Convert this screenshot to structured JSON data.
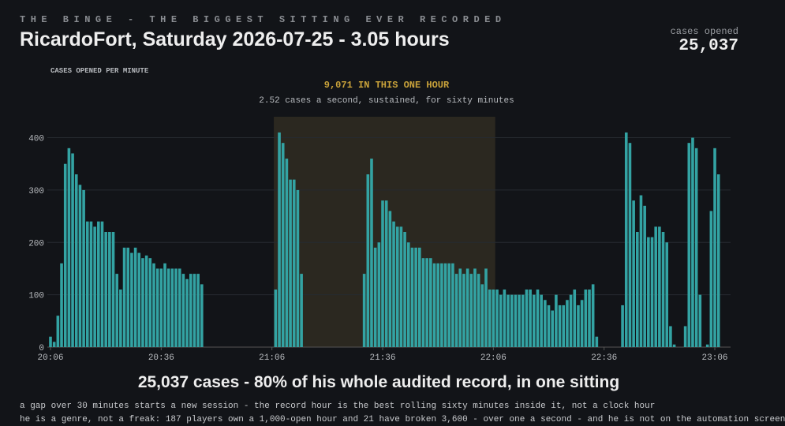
{
  "header": {
    "kicker": "THE BINGE - THE BIGGEST SITTING EVER RECORDED",
    "title": "RicardoFort, Saturday 2026-07-25 - 3.05 hours",
    "stat_label": "cases opened",
    "stat_value": "25,037"
  },
  "chart_data": {
    "type": "bar",
    "y_label": "CASES OPENED PER MINUTE",
    "annotation": "9,071 IN THIS ONE HOUR",
    "annotation_sub": "2.52 cases a second, sustained, for sixty minutes",
    "highlight_range": [
      61,
      120
    ],
    "highlight_color": "#2b2820",
    "annotation_color": "#c9a23a",
    "color": "#33a3a3",
    "grid": true,
    "ylim": [
      0,
      440
    ],
    "yticks": [
      0,
      100,
      200,
      300,
      400
    ],
    "categories": [
      "20:06",
      null,
      null,
      null,
      null,
      null,
      null,
      null,
      null,
      null,
      null,
      null,
      null,
      null,
      null,
      null,
      null,
      null,
      null,
      null,
      null,
      null,
      null,
      null,
      null,
      null,
      null,
      null,
      null,
      null,
      "20:36",
      null,
      null,
      null,
      null,
      null,
      null,
      null,
      null,
      null,
      null,
      null,
      null,
      null,
      null,
      null,
      null,
      null,
      null,
      null,
      null,
      null,
      null,
      null,
      null,
      null,
      null,
      null,
      null,
      null,
      "21:06",
      null,
      null,
      null,
      null,
      null,
      null,
      null,
      null,
      null,
      null,
      null,
      null,
      null,
      null,
      null,
      null,
      null,
      null,
      null,
      null,
      null,
      null,
      null,
      null,
      null,
      null,
      null,
      null,
      null,
      "21:36",
      null,
      null,
      null,
      null,
      null,
      null,
      null,
      null,
      null,
      null,
      null,
      null,
      null,
      null,
      null,
      null,
      null,
      null,
      null,
      null,
      null,
      null,
      null,
      null,
      null,
      null,
      null,
      null,
      null,
      "22:06",
      null,
      null,
      null,
      null,
      null,
      null,
      null,
      null,
      null,
      null,
      null,
      null,
      null,
      null,
      null,
      null,
      null,
      null,
      null,
      null,
      null,
      null,
      null,
      null,
      null,
      null,
      null,
      null,
      null,
      "22:36",
      null,
      null,
      null,
      null,
      null,
      null,
      null,
      null,
      null,
      null,
      null,
      null,
      null,
      null,
      null,
      null,
      null,
      null,
      null,
      null,
      null,
      null,
      null,
      null,
      null,
      null,
      null,
      null,
      null,
      "23:06",
      null
    ],
    "values": [
      20,
      10,
      60,
      160,
      350,
      380,
      370,
      330,
      310,
      300,
      240,
      240,
      230,
      240,
      240,
      220,
      220,
      220,
      140,
      110,
      190,
      190,
      180,
      190,
      180,
      170,
      175,
      170,
      160,
      150,
      150,
      160,
      150,
      150,
      150,
      150,
      140,
      130,
      140,
      140,
      140,
      120,
      0,
      0,
      0,
      0,
      0,
      0,
      0,
      0,
      0,
      0,
      0,
      0,
      0,
      0,
      0,
      0,
      0,
      0,
      0,
      110,
      410,
      390,
      360,
      320,
      320,
      300,
      140,
      0,
      0,
      0,
      0,
      0,
      0,
      0,
      0,
      0,
      0,
      0,
      0,
      0,
      0,
      0,
      0,
      140,
      330,
      360,
      190,
      200,
      280,
      280,
      260,
      240,
      230,
      230,
      220,
      200,
      190,
      190,
      190,
      170,
      170,
      170,
      160,
      160,
      160,
      160,
      160,
      160,
      140,
      150,
      140,
      150,
      140,
      150,
      140,
      120,
      150,
      110,
      110,
      110,
      100,
      110,
      100,
      100,
      100,
      100,
      100,
      110,
      110,
      100,
      110,
      100,
      90,
      80,
      70,
      100,
      80,
      80,
      90,
      100,
      110,
      80,
      90,
      110,
      110,
      120,
      20,
      0,
      0,
      0,
      0,
      0,
      0,
      80,
      410,
      390,
      280,
      220,
      290,
      270,
      210,
      210,
      230,
      230,
      220,
      200,
      40,
      5,
      0,
      0,
      40,
      390,
      400,
      380,
      100,
      0,
      5,
      260,
      380,
      330
    ]
  },
  "footer": {
    "headline": "25,037 cases - 80% of his whole audited record, in one sitting",
    "notes": [
      "a gap over 30 minutes starts a new session - the record hour is the best rolling sixty minutes inside it, not a clock hour",
      "he is a genre, not a freak: 187 players own a 1,000-open hour and 21 have broken 3,600 - over one a second - and he is not on the automation screen"
    ]
  }
}
